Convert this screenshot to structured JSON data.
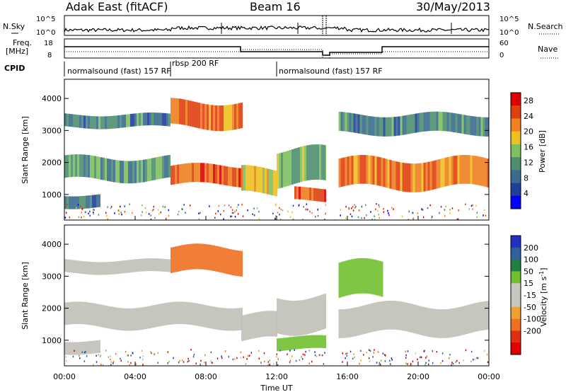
{
  "header": {
    "station": "Adak East (fitACF)",
    "beam": "Beam 16",
    "date": "30/May/2013"
  },
  "top_panels": {
    "nsky_label": "N.Sky",
    "nsearch_label": "N.Search",
    "nsky_ticks": [
      "10^5",
      "10^0"
    ],
    "nsearch_ticks": [
      "10^5",
      "10^0"
    ],
    "freq_label_1": "Freq.",
    "freq_label_2": "[MHz]",
    "freq_ticks": [
      "18",
      "8"
    ],
    "nave_label": "Nave",
    "nave_ticks": [
      "60",
      "0"
    ],
    "cpid_label": "CPID",
    "cpid_segments": [
      {
        "label": "normalsound (fast) 157 RF",
        "start_h": 0,
        "end_h": 6
      },
      {
        "label": "rbsp 200 RF",
        "start_h": 6,
        "end_h": 12
      },
      {
        "label": "normalsound (fast) 157 RF",
        "start_h": 12,
        "end_h": 24
      }
    ]
  },
  "colors": {
    "power_scale": [
      "#0000ff",
      "#1f3f9f",
      "#3b6b8f",
      "#4f8f6f",
      "#7fbf5f",
      "#f0c020",
      "#f08020",
      "#e04010",
      "#e00000"
    ],
    "velocity_scale": [
      "#2030c0",
      "#3060a0",
      "#208040",
      "#70c030",
      "#c8c8c0",
      "#c8c8c0",
      "#f0a030",
      "#f07020",
      "#e03010",
      "#e00000"
    ],
    "ground_scatter": "#c0c0b8"
  },
  "chart_data": [
    {
      "type": "heatmap",
      "name": "Power",
      "xlabel": "",
      "ylabel": "Slant Range [km]",
      "x_ticks": [
        "00:00",
        "04:00",
        "08:00",
        "12:00",
        "16:00",
        "20:00",
        "00:00"
      ],
      "xlim_hours": [
        0,
        24
      ],
      "ylim": [
        200,
        4600
      ],
      "y_ticks": [
        1000,
        2000,
        3000,
        4000
      ],
      "colorbar": {
        "label": "Power [dB]",
        "ticks": [
          4,
          8,
          12,
          16,
          20,
          24,
          28
        ],
        "range": [
          0,
          30
        ]
      },
      "bands": [
        {
          "t0": 0,
          "t1": 6,
          "r0": 1450,
          "r1": 2150,
          "value": 12
        },
        {
          "t0": 0,
          "t1": 6,
          "r0": 3100,
          "r1": 3500,
          "value": 10
        },
        {
          "t0": 0,
          "t1": 2,
          "r0": 600,
          "r1": 1000,
          "value": 8
        },
        {
          "t0": 6,
          "t1": 10,
          "r0": 1300,
          "r1": 1900,
          "value": 24
        },
        {
          "t0": 6,
          "t1": 10,
          "r0": 3100,
          "r1": 3900,
          "value": 22
        },
        {
          "t0": 10,
          "t1": 12,
          "r0": 1000,
          "r1": 1800,
          "value": 18
        },
        {
          "t0": 12,
          "t1": 15,
          "r0": 1300,
          "r1": 2400,
          "value": 14
        },
        {
          "t0": 13,
          "t1": 15,
          "r0": 800,
          "r1": 1200,
          "value": 24
        },
        {
          "t0": 15.5,
          "t1": 24,
          "r0": 1200,
          "r1": 2100,
          "value": 22
        },
        {
          "t0": 15.5,
          "t1": 24,
          "r0": 2900,
          "r1": 3500,
          "value": 10
        }
      ]
    },
    {
      "type": "heatmap",
      "name": "Velocity",
      "xlabel": "Time UT",
      "ylabel": "Slant Range [km]",
      "x_ticks": [
        "00:00",
        "04:00",
        "08:00",
        "12:00",
        "16:00",
        "20:00",
        "00:00"
      ],
      "xlim_hours": [
        0,
        24
      ],
      "ylim": [
        200,
        4600
      ],
      "y_ticks": [
        1000,
        2000,
        3000,
        4000
      ],
      "colorbar": {
        "label": "Velocity [m s^-1]",
        "ticks": [
          200,
          100,
          50,
          15,
          -15,
          -50,
          -100,
          -200
        ]
      },
      "bands": [
        {
          "t0": 0,
          "t1": 10,
          "r0": 1400,
          "r1": 2100,
          "value": 0
        },
        {
          "t0": 0,
          "t1": 6,
          "r0": 3100,
          "r1": 3500,
          "value": 0
        },
        {
          "t0": 0,
          "t1": 2,
          "r0": 600,
          "r1": 1000,
          "value": 0
        },
        {
          "t0": 6,
          "t1": 10,
          "r0": 3100,
          "r1": 3900,
          "value": -60
        },
        {
          "t0": 10,
          "t1": 12,
          "r0": 1000,
          "r1": 1800,
          "value": 0
        },
        {
          "t0": 12,
          "t1": 15,
          "r0": 1300,
          "r1": 2400,
          "value": 0
        },
        {
          "t0": 12,
          "t1": 15,
          "r0": 700,
          "r1": 1100,
          "value": 60
        },
        {
          "t0": 15.5,
          "t1": 24,
          "r0": 1200,
          "r1": 2100,
          "value": 0
        },
        {
          "t0": 15.5,
          "t1": 18,
          "r0": 2300,
          "r1": 3400,
          "value": 60
        }
      ]
    }
  ]
}
